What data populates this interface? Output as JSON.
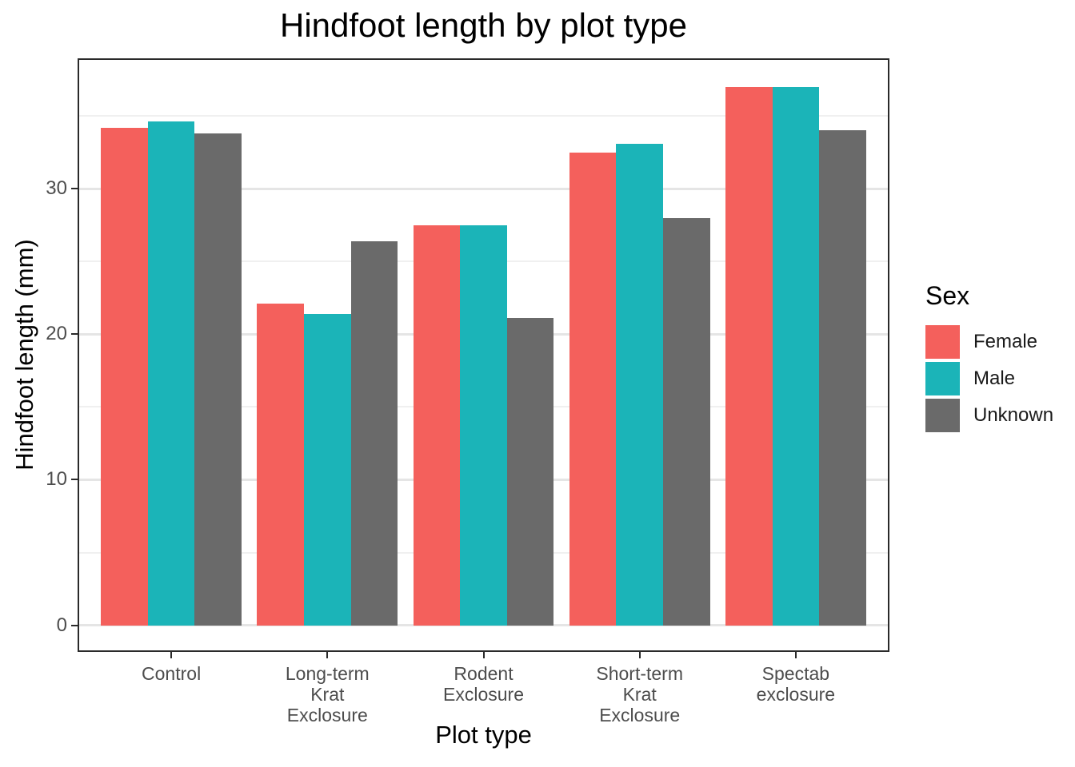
{
  "title": "Hindfoot length by plot type",
  "axes": {
    "x": {
      "label": "Plot type",
      "tick_label_lines": [
        [
          "Control"
        ],
        [
          "Long-term",
          "Krat",
          "Exclosure"
        ],
        [
          "Rodent",
          "Exclosure"
        ],
        [
          "Short-term",
          "Krat",
          "Exclosure"
        ],
        [
          "Spectab",
          "exclosure"
        ]
      ]
    },
    "y": {
      "label": "Hindfoot length (mm)",
      "tick_labels": [
        "0",
        "10",
        "20",
        "30"
      ]
    }
  },
  "legend": {
    "title": "Sex",
    "entries": [
      {
        "label": "Female",
        "color": "#f4605c"
      },
      {
        "label": "Male",
        "color": "#1bb4b8"
      },
      {
        "label": "Unknown",
        "color": "#6a6a6a"
      }
    ]
  },
  "chart_data": {
    "type": "bar",
    "title": "Hindfoot length by plot type",
    "xlabel": "Plot type",
    "ylabel": "Hindfoot length (mm)",
    "categories": [
      "Control",
      "Long-term Krat Exclosure",
      "Rodent Exclosure",
      "Short-term Krat Exclosure",
      "Spectab exclosure"
    ],
    "series": [
      {
        "name": "Female",
        "color": "#f4605c",
        "values": [
          34.2,
          22.1,
          27.5,
          32.5,
          37.0
        ]
      },
      {
        "name": "Male",
        "color": "#1bb4b8",
        "values": [
          34.6,
          21.4,
          27.5,
          33.1,
          37.0
        ]
      },
      {
        "name": "Unknown",
        "color": "#6a6a6a",
        "values": [
          33.8,
          26.4,
          21.1,
          28.0,
          34.0
        ]
      }
    ],
    "ylim": [
      -1.83,
      38.95
    ],
    "yticks_major": [
      0,
      10,
      20,
      30
    ],
    "yticks_minor": [
      5,
      15,
      25,
      35
    ],
    "grid": true,
    "legend_position": "right",
    "panel_background": "#ffffff"
  }
}
